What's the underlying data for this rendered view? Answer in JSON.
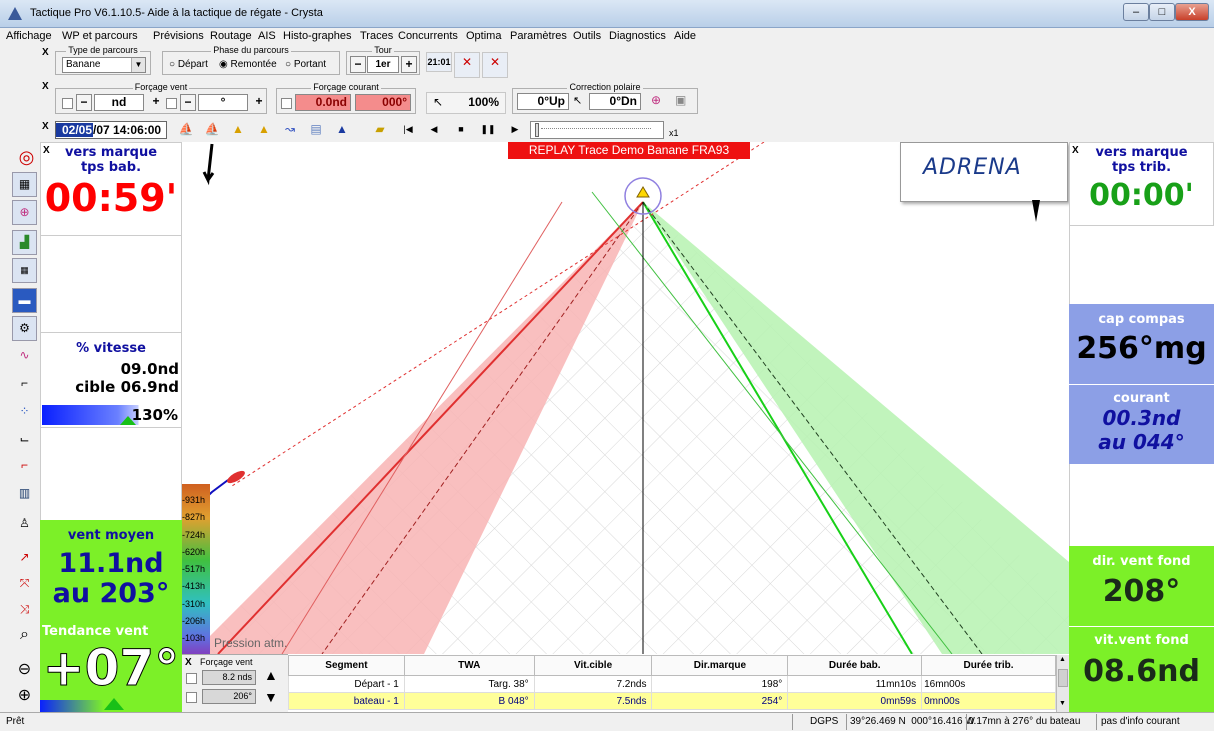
{
  "window": {
    "title": "Tactique Pro V6.1.10.5- Aide à la tactique de régate - Crysta",
    "min": "–",
    "max": "□",
    "close": "X"
  },
  "menu": [
    "Affichage",
    "WP et parcours",
    "Prévisions",
    "Routage",
    "AIS",
    "Histo-graphes",
    "Traces",
    "Concurrents",
    "Optima",
    "Paramètres",
    "Outils",
    "Diagnostics",
    "Aide"
  ],
  "toolbar1": {
    "close": "X",
    "parcours_label": "Type de parcours",
    "parcours_value": "Banane",
    "phase_label": "Phase du parcours",
    "phase_options": [
      "Départ",
      "Remontée",
      "Portant"
    ],
    "phase_selected": "Remontée",
    "tour_label": "Tour",
    "tour_value": "1er",
    "minus": "−",
    "plus": "+",
    "clock": "21:01"
  },
  "toolbar2": {
    "close": "X",
    "vent_label": "Forçage vent",
    "vent_value": "nd",
    "vent_dir": "°",
    "courant_label": "Forçage courant",
    "courant_speed": "0.0nd",
    "courant_dir": "000°",
    "zoom": "100%",
    "polaire_label": "Correction polaire",
    "polaire_up": "0°Up",
    "polaire_dn": "0°Dn"
  },
  "toolbar3": {
    "close": "X",
    "datetime_day": "02/05",
    "datetime_rest": "/07 14:06:00",
    "speed": "x1"
  },
  "replay_banner": "REPLAY Trace Demo Banane FRA93",
  "logo": "ADRENA",
  "left_panels": {
    "close": "X",
    "marque_title": "vers marque",
    "marque_sub": "tps bab.",
    "marque_time": "00:59'",
    "vitesse_title": "% vitesse",
    "vitesse_value": "09.0nd",
    "vitesse_cible": "cible 06.9nd",
    "vitesse_pct": "130%",
    "vent_title": "vent moyen",
    "vent_speed": "11.1nd",
    "vent_dir": "au 203°",
    "tendance_title": "Tendance vent",
    "tendance_value": "+07°"
  },
  "right_panels": {
    "close": "X",
    "marque_title": "vers marque",
    "marque_sub": "tps trib.",
    "marque_time": "00:00'",
    "cap_title": "cap compas",
    "cap_value": "256°mg",
    "courant_title": "courant",
    "courant_speed": "00.3nd",
    "courant_dir": "au 044°",
    "dirvent_title": "dir. vent fond",
    "dirvent_value": "208°",
    "vitvent_title": "vit.vent fond",
    "vitvent_value": "08.6nd"
  },
  "pressure": {
    "label": "Pression atm.",
    "ticks": [
      "-931h",
      "-827h",
      "-724h",
      "-620h",
      "-517h",
      "-413h",
      "-310h",
      "-206h",
      "-103h"
    ]
  },
  "forcage": {
    "close": "X",
    "label": "Forçage vent",
    "speed": "8.2 nds",
    "dir": "206°"
  },
  "table": {
    "headers": [
      "Segment",
      "TWA",
      "Vit.cible",
      "Dir.marque",
      "Durée bab.",
      "Durée trib."
    ],
    "rows": [
      [
        "Départ - 1",
        "Targ. 38°",
        "7.2nds",
        "198°",
        "11mn10s",
        "16mn00s"
      ],
      [
        "bateau - 1",
        "B 048°",
        "7.5nds",
        "254°",
        "0mn59s",
        "0mn00s"
      ]
    ]
  },
  "status": {
    "ready": "Prêt",
    "gps": "DGPS",
    "position": "39°26.469 N  000°16.416 W",
    "bearing": "0.17mn à 276° du bateau",
    "courant": "pas d'info courant"
  },
  "colors": {
    "red_sector": "#f8b4b4",
    "green_sector": "#b6f2b0",
    "panel_blue": "#8c9fe6",
    "panel_green": "#7cf028",
    "red_text": "#ff0000",
    "blue_text": "#1010a0"
  }
}
